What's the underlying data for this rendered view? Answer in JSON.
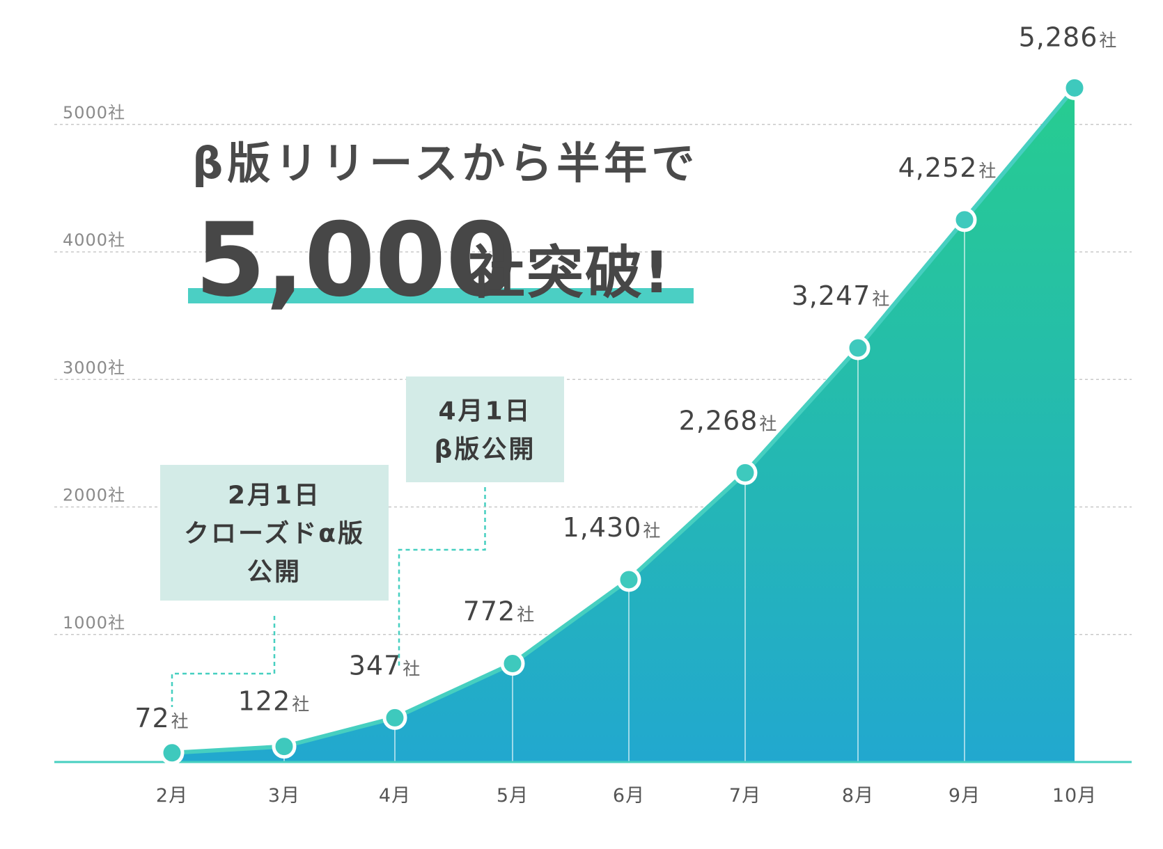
{
  "headline": {
    "line1": "β版リリースから半年で",
    "number": "5,000",
    "suffix": "社突破!",
    "underline_color": "#4bcfc4"
  },
  "chart_data": {
    "type": "area",
    "categories": [
      "2月",
      "3月",
      "4月",
      "5月",
      "6月",
      "7月",
      "8月",
      "9月",
      "10月"
    ],
    "series": [
      {
        "values": [
          72,
          122,
          347,
          772,
          1430,
          2268,
          3247,
          4252,
          5286
        ]
      }
    ],
    "value_labels": [
      "72",
      "122",
      "347",
      "772",
      "1,430",
      "2,268",
      "3,247",
      "4,252",
      "5,286"
    ],
    "unit": "社",
    "y_ticks": [
      {
        "value": 1000,
        "label": "1000社"
      },
      {
        "value": 2000,
        "label": "2000社"
      },
      {
        "value": 3000,
        "label": "3000社"
      },
      {
        "value": 4000,
        "label": "4000社"
      },
      {
        "value": 5000,
        "label": "5000社"
      }
    ],
    "ylim": [
      0,
      5300
    ],
    "grid": "dashed horizontal",
    "colors": {
      "fill_top": "#27cc90",
      "fill_bottom": "#22a8cf",
      "line": "#46cfc0",
      "marker": "#3ec9bd",
      "axis": "#46cfc0",
      "grid": "#c8c8c8"
    },
    "annotations": [
      {
        "category_index": 0,
        "lines": [
          "2月1日",
          "クローズドα版",
          "公開"
        ],
        "box_color": "#d3ebe7"
      },
      {
        "category_index": 2,
        "lines": [
          "4月1日",
          "β版公開"
        ],
        "box_color": "#d3ebe7"
      }
    ]
  }
}
